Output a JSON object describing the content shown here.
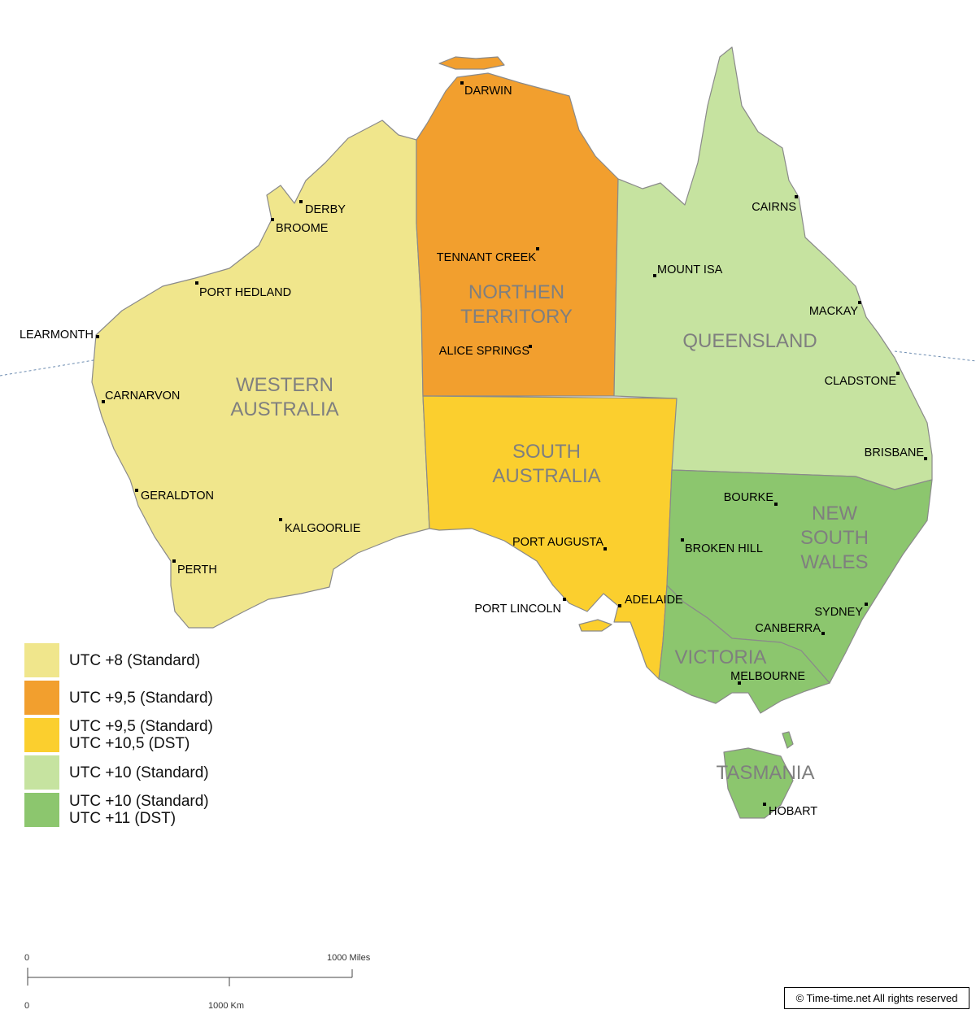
{
  "regions": [
    {
      "name": "WESTERN",
      "name2": "AUSTRALIA",
      "color": "#f0e68c"
    },
    {
      "name": "NORTHEN",
      "name2": "TERRITORY",
      "color": "#f29f2e"
    },
    {
      "name": "SOUTH",
      "name2": "AUSTRALIA",
      "color": "#fbcf2e"
    },
    {
      "name": "QUEENSLAND",
      "color": "#c6e3a0"
    },
    {
      "name": "NEW",
      "name2": "SOUTH",
      "name3": "WALES",
      "color": "#8cc66e"
    },
    {
      "name": "VICTORIA",
      "color": "#8cc66e"
    },
    {
      "name": "TASMANIA",
      "color": "#8cc66e"
    }
  ],
  "cities": [
    "DARWIN",
    "DERBY",
    "BROOME",
    "PORT HEDLAND",
    "LEARMONTH",
    "CARNARVON",
    "GERALDTON",
    "KALGOORLIE",
    "PERTH",
    "TENNANT CREEK",
    "ALICE SPRINGS",
    "MOUNT ISA",
    "CAIRNS",
    "MACKAY",
    "CLADSTONE",
    "BRISBANE",
    "BOURKE",
    "BROKEN HILL",
    "PORT AUGUSTA",
    "PORT LINCOLN",
    "ADELAIDE",
    "SYDNEY",
    "CANBERRA",
    "MELBOURNE",
    "HOBART"
  ],
  "legend": [
    {
      "line1": "UTC +8 (Standard)",
      "color": "#f0e68c"
    },
    {
      "line1": "UTC +9,5 (Standard)",
      "color": "#f29f2e"
    },
    {
      "line1": "UTC +9,5 (Standard)",
      "line2": "UTC +10,5 (DST)",
      "color": "#fbcf2e"
    },
    {
      "line1": "UTC +10 (Standard)",
      "color": "#c6e3a0"
    },
    {
      "line1": "UTC +10 (Standard)",
      "line2": "UTC +11 (DST)",
      "color": "#8cc66e"
    }
  ],
  "scale": {
    "zero": "0",
    "miles": "1000 Miles",
    "km": "1000 Km"
  },
  "copyright": "© Time-time.net   All rights reserved"
}
